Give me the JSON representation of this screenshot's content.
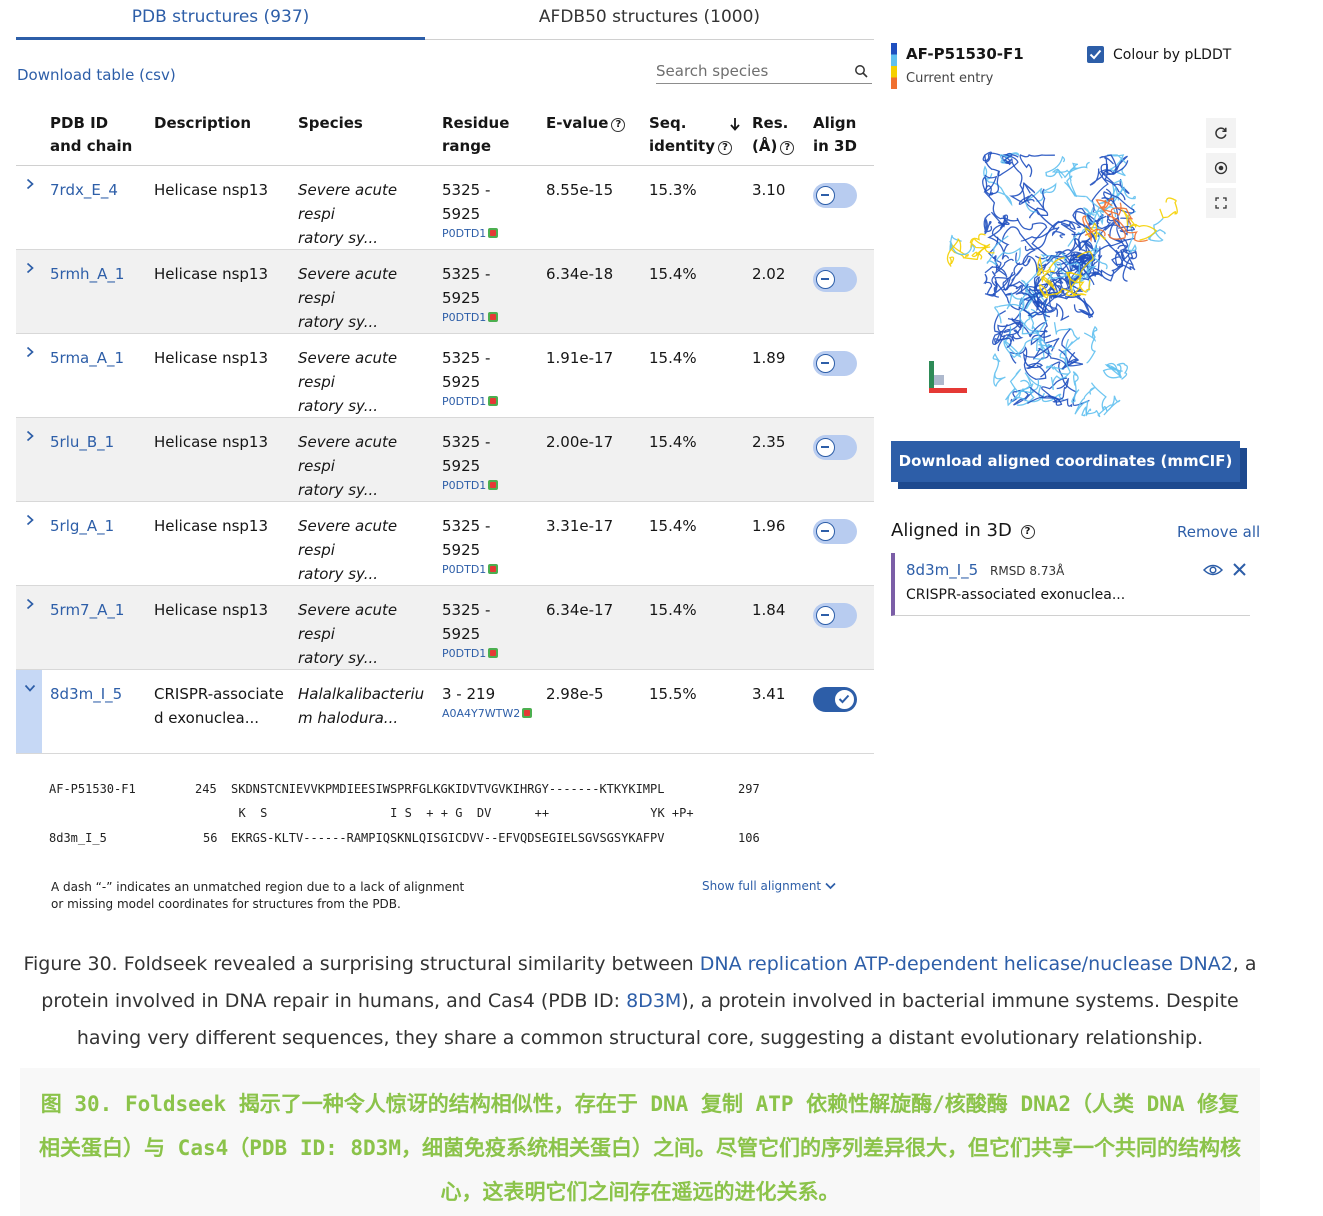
{
  "tabs": [
    {
      "label": "PDB structures (937)",
      "active": true
    },
    {
      "label": "AFDB50 structures (1000)",
      "active": false
    }
  ],
  "toolbar": {
    "download_table": "Download table (csv)",
    "search_placeholder": "Search species"
  },
  "table": {
    "headers": {
      "pdb_id": [
        "PDB ID",
        "and chain"
      ],
      "description": "Description",
      "species": "Species",
      "residue_range": [
        "Residue",
        "range"
      ],
      "evalue": "E-value",
      "seq_identity": [
        "Seq.",
        "identity"
      ],
      "res": [
        "Res.",
        "(Å)"
      ],
      "align": [
        "Align",
        "in 3D"
      ]
    },
    "rows": [
      {
        "id": "7rdx_E_4",
        "desc": "Helicase nsp13",
        "species": [
          "Severe acute respi",
          "ratory sy..."
        ],
        "range": [
          "5325 -",
          "5925"
        ],
        "uniprot": "P0DTD1",
        "evalue": "8.55e-15",
        "seqid": "15.3%",
        "res": "3.10",
        "aligned": false
      },
      {
        "id": "5rmh_A_1",
        "desc": "Helicase nsp13",
        "species": [
          "Severe acute respi",
          "ratory sy..."
        ],
        "range": [
          "5325 -",
          "5925"
        ],
        "uniprot": "P0DTD1",
        "evalue": "6.34e-18",
        "seqid": "15.4%",
        "res": "2.02",
        "aligned": false
      },
      {
        "id": "5rma_A_1",
        "desc": "Helicase nsp13",
        "species": [
          "Severe acute respi",
          "ratory sy..."
        ],
        "range": [
          "5325 -",
          "5925"
        ],
        "uniprot": "P0DTD1",
        "evalue": "1.91e-17",
        "seqid": "15.4%",
        "res": "1.89",
        "aligned": false
      },
      {
        "id": "5rlu_B_1",
        "desc": "Helicase nsp13",
        "species": [
          "Severe acute respi",
          "ratory sy..."
        ],
        "range": [
          "5325 -",
          "5925"
        ],
        "uniprot": "P0DTD1",
        "evalue": "2.00e-17",
        "seqid": "15.4%",
        "res": "2.35",
        "aligned": false
      },
      {
        "id": "5rlg_A_1",
        "desc": "Helicase nsp13",
        "species": [
          "Severe acute respi",
          "ratory sy..."
        ],
        "range": [
          "5325 -",
          "5925"
        ],
        "uniprot": "P0DTD1",
        "evalue": "3.31e-17",
        "seqid": "15.4%",
        "res": "1.96",
        "aligned": false
      },
      {
        "id": "5rm7_A_1",
        "desc": "Helicase nsp13",
        "species": [
          "Severe acute respi",
          "ratory sy..."
        ],
        "range": [
          "5325 -",
          "5925"
        ],
        "uniprot": "P0DTD1",
        "evalue": "6.34e-17",
        "seqid": "15.4%",
        "res": "1.84",
        "aligned": false
      },
      {
        "id": "8d3m_I_5",
        "desc": [
          "CRISPR-associate",
          "d exonuclea..."
        ],
        "species": [
          "Halalkalibacteriu",
          "m halodura..."
        ],
        "range": [
          "3 - 219"
        ],
        "uniprot": "A0A4Y7WTW2",
        "evalue": "2.98e-5",
        "seqid": "15.5%",
        "res": "3.41",
        "aligned": true
      }
    ]
  },
  "alignment": {
    "query_name": "AF-P51530-F1",
    "query_start": "245",
    "query_seq": "SKDNSTCNIEVVKPMDIEESIWSPRFGLKGKIDVTVGVKIHRGY-------KTKYKIMPL",
    "query_end": "297",
    "match_line": "  K  S                 I S  + + G  DV      ++              YK +P+",
    "target_name": "8d3m_I_5",
    "target_start": "56",
    "target_seq": "EKRGS-KLTV------RAMPIQSKNLQISGICDVV--EFVQDSEGIELSGVSGSYKAFPV",
    "target_end": "106",
    "note_line1": "A dash “-” indicates an unmatched region due to a lack of alignment",
    "note_line2": "or missing model coordinates for structures from the PDB.",
    "show_full": "Show full alignment"
  },
  "right_panel": {
    "entry_id": "AF-P51530-F1",
    "entry_sub": "Current entry",
    "colour_by_plddt": "Colour by pLDDT",
    "download_aligned": "Download aligned coordinates (mmCIF)",
    "aligned_title": "Aligned in 3D",
    "remove_all": "Remove all",
    "aligned_item": {
      "id": "8d3m_I_5",
      "rmsd": "RMSD 8.73Å",
      "desc": "CRISPR-associated exonuclea..."
    },
    "colors": {
      "very_high": "#1f4fbf",
      "confident": "#5fc0f0",
      "low": "#f5d000",
      "very_low": "#f07030"
    }
  },
  "caption_en": {
    "t1": "Figure 30. Foldseek revealed a surprising structural similarity between ",
    "link1": "DNA replication ATP-dependent helicase/nuclease DNA2",
    "t2": ", a protein involved in DNA repair in humans, and Cas4 (PDB ID: ",
    "link2": "8D3M",
    "t3": "), a protein involved in bacterial immune systems. Despite having very different sequences, they share a common structural core, suggesting a distant evolutionary relationship."
  },
  "caption_zh": "图 30. Foldseek 揭示了一种令人惊讶的结构相似性，存在于 DNA 复制 ATP 依赖性解旋酶/核酸酶 DNA2（人类 DNA 修复相关蛋白）与 Cas4（PDB ID: 8D3M，细菌免疫系统相关蛋白）之间。尽管它们的序列差异很大，但它们共享一个共同的结构核心，这表明它们之间存在遥远的进化关系。"
}
